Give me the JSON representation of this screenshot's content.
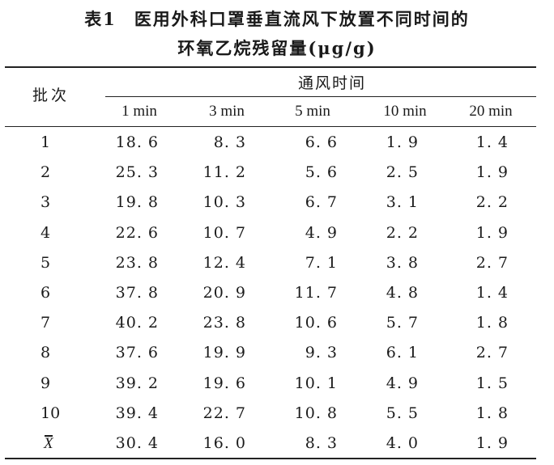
{
  "caption": {
    "label": "表1",
    "line1": "医用外科口罩垂直流风下放置不同时间的",
    "line2": "环氧乙烷残留量(μg/g)"
  },
  "table": {
    "stub_header": "批次",
    "group_header": "通风时间",
    "columns": [
      "1 min",
      "3 min",
      "5 min",
      "10 min",
      "20 min"
    ],
    "rows": [
      {
        "batch": "1",
        "values": [
          "18. 6",
          "8. 3",
          "6. 6",
          "1. 9",
          "1. 4"
        ]
      },
      {
        "batch": "2",
        "values": [
          "25. 3",
          "11. 2",
          "5. 6",
          "2. 5",
          "1. 9"
        ]
      },
      {
        "batch": "3",
        "values": [
          "19. 8",
          "10. 3",
          "6. 7",
          "3. 1",
          "2. 2"
        ]
      },
      {
        "batch": "4",
        "values": [
          "22. 6",
          "10. 7",
          "4. 9",
          "2. 2",
          "1. 9"
        ]
      },
      {
        "batch": "5",
        "values": [
          "23. 8",
          "12. 4",
          "7. 1",
          "3. 8",
          "2. 7"
        ]
      },
      {
        "batch": "6",
        "values": [
          "37. 8",
          "20. 9",
          "11. 7",
          "4. 8",
          "1. 4"
        ]
      },
      {
        "batch": "7",
        "values": [
          "40. 2",
          "23. 8",
          "10. 6",
          "5. 7",
          "1. 8"
        ]
      },
      {
        "batch": "8",
        "values": [
          "37. 6",
          "19. 9",
          "9. 3",
          "6. 1",
          "2. 7"
        ]
      },
      {
        "batch": "9",
        "values": [
          "39. 2",
          "19. 6",
          "10. 1",
          "4. 9",
          "1. 5"
        ]
      },
      {
        "batch": "10",
        "values": [
          "39. 4",
          "22. 7",
          "10. 8",
          "5. 5",
          "1. 8"
        ]
      }
    ],
    "mean_row": {
      "label": "X",
      "values": [
        "30. 4",
        "16. 0",
        "8. 3",
        "4. 0",
        "1. 9"
      ]
    }
  }
}
